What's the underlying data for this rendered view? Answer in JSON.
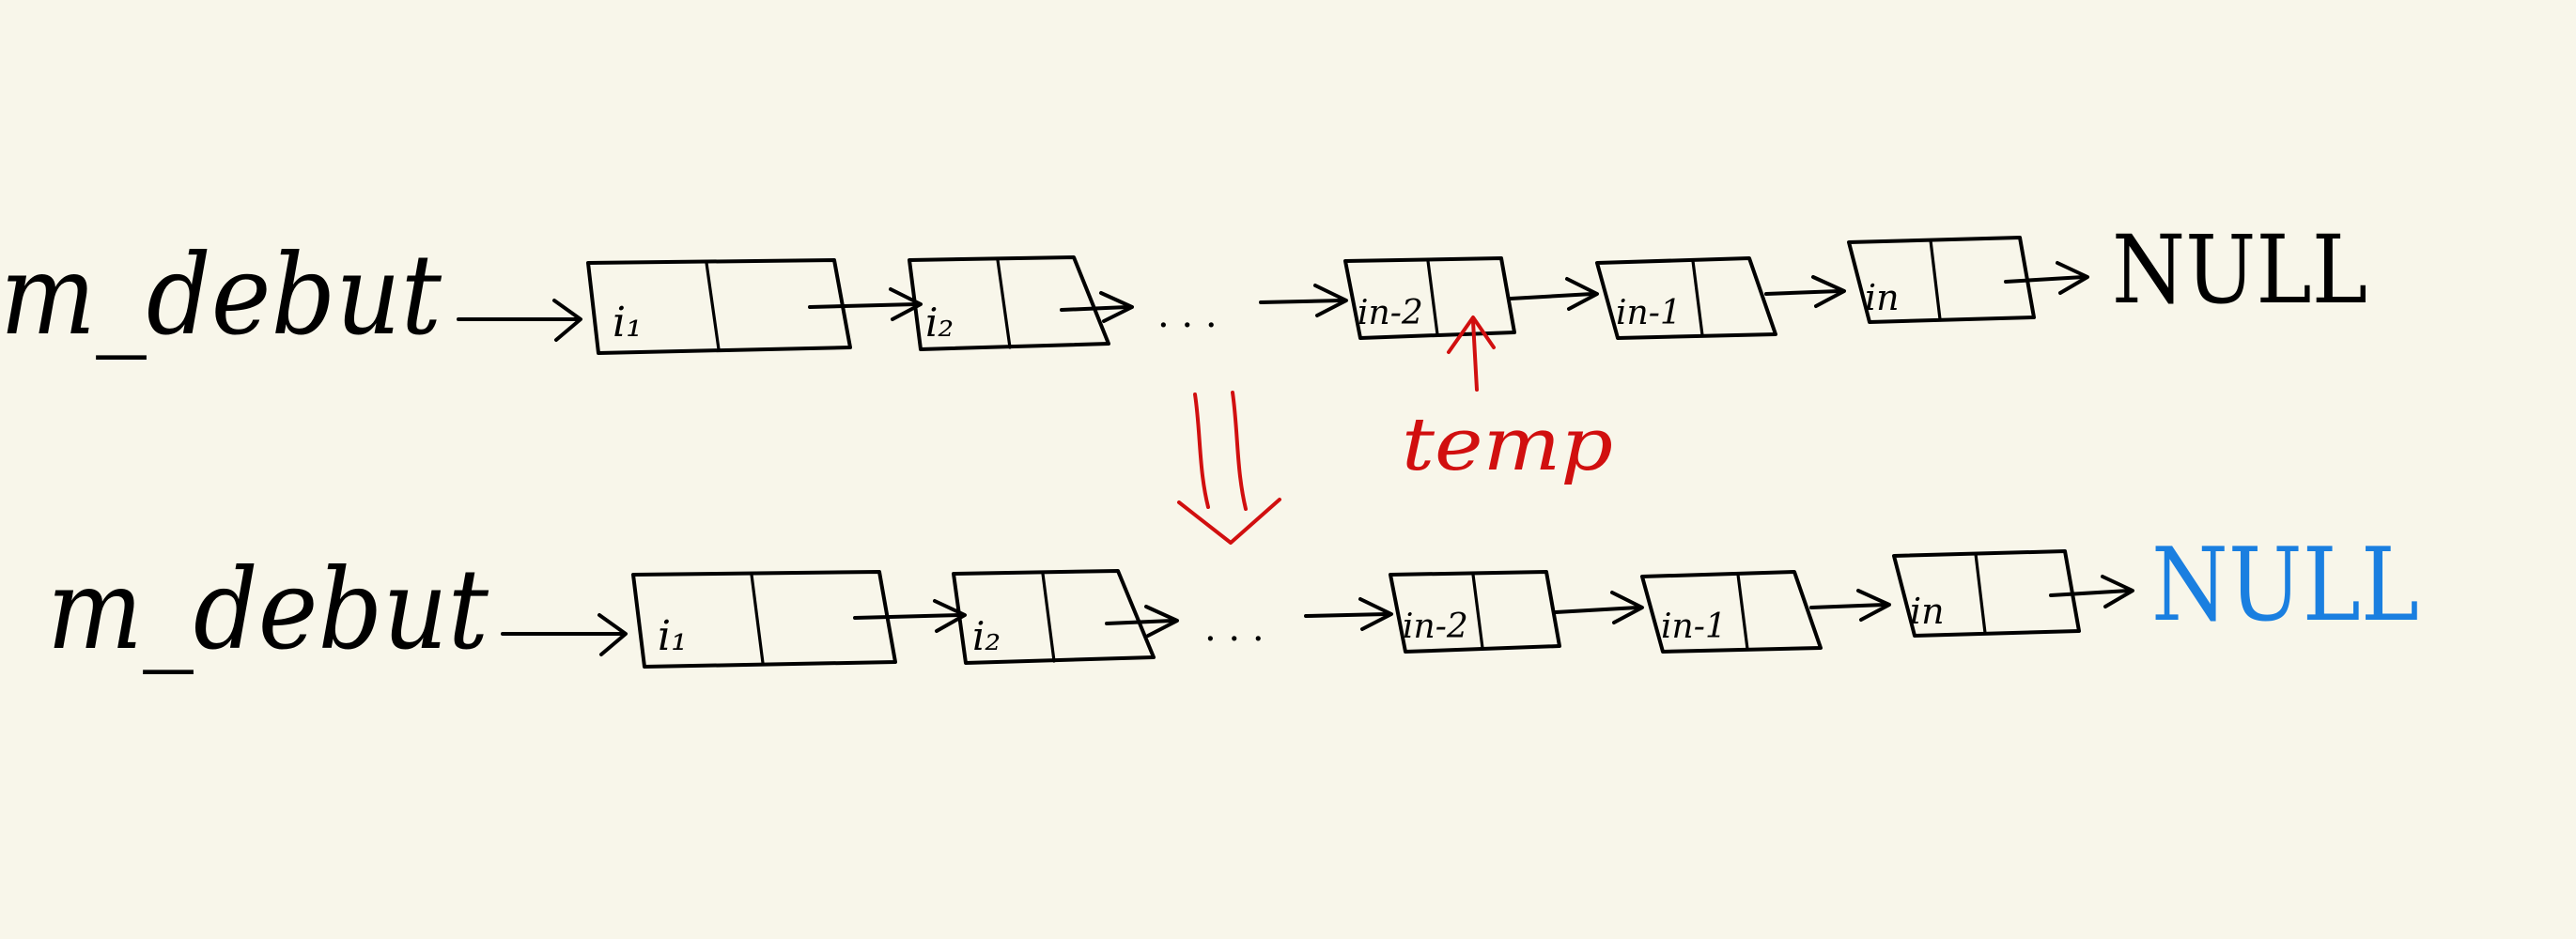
{
  "colors": {
    "background": "#f8f6ea",
    "ink": "#000000",
    "highlight": "#d10f0f",
    "null_new": "#1a7fe0"
  },
  "rows": [
    {
      "head_label": "m_debut",
      "dots": ". . .",
      "nodes": [
        "i₁",
        "i₂",
        "in-2",
        "in-1",
        "in"
      ],
      "null_label": "NULL"
    },
    {
      "head_label": "m_debut",
      "dots": ". . .",
      "nodes": [
        "i₁",
        "i₂",
        "in-2",
        "in-1",
        "in"
      ],
      "null_label": "NULL"
    }
  ],
  "annotation": {
    "label": "temp",
    "target_node": "in-2"
  },
  "transition": {
    "icon": "double-down-arrow-icon"
  }
}
